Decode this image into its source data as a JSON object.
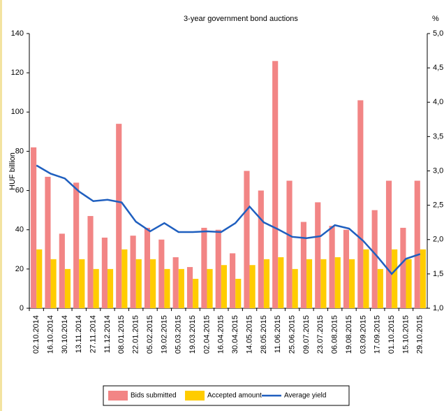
{
  "chart_data": {
    "type": "bar-line",
    "title": "3-year government bond auctions",
    "ylabel": "HUF billion",
    "y2label": "%",
    "categories": [
      "02.10.2014",
      "16.10.2014",
      "30.10.2014",
      "13.11.2014",
      "27.11.2014",
      "11.12.2014",
      "08.01.2015",
      "22.01.2015",
      "05.02.2015",
      "19.02.2015",
      "05.03.2015",
      "19.03.2015",
      "02.04.2015",
      "16.04.2015",
      "30.04.2015",
      "14.05.2015",
      "28.05.2015",
      "11.06.2015",
      "25.06.2015",
      "09.07.2015",
      "23.07.2015",
      "06.08.2015",
      "19.08.2015",
      "03.09.2015",
      "17.09.2015",
      "01.10.2015",
      "15.10.2015",
      "29.10.2015"
    ],
    "series": [
      {
        "name": "Bids submitted",
        "color": "#f28585",
        "type": "bar",
        "values": [
          82,
          67,
          38,
          64,
          47,
          36,
          94,
          37,
          41,
          35,
          26,
          21,
          41,
          40,
          28,
          70,
          60,
          126,
          65,
          44,
          54,
          42,
          40,
          106,
          50,
          65,
          41,
          65
        ]
      },
      {
        "name": "Accepted amount",
        "color": "#ffcc00",
        "type": "bar",
        "values": [
          30,
          25,
          20,
          25,
          20,
          20,
          30,
          25,
          25,
          20,
          20,
          15,
          20,
          22,
          15,
          22,
          25,
          26,
          20,
          25,
          25,
          26,
          25,
          30,
          20,
          30,
          25,
          30
        ]
      },
      {
        "name": "Average yield",
        "color": "#1f5fbf",
        "type": "line",
        "axis": "y2",
        "values": [
          3.08,
          2.96,
          2.89,
          2.7,
          2.56,
          2.58,
          2.54,
          2.26,
          2.12,
          2.24,
          2.11,
          2.11,
          2.12,
          2.11,
          2.24,
          2.48,
          2.25,
          2.15,
          2.04,
          2.02,
          2.05,
          2.21,
          2.16,
          1.98,
          1.75,
          1.5,
          1.72,
          1.79
        ]
      }
    ],
    "ylim": [
      0,
      140
    ],
    "yticks": [
      0,
      20,
      40,
      60,
      80,
      100,
      120,
      140
    ],
    "y2lim": [
      1,
      5
    ],
    "y2ticks": [
      {
        "value": 1,
        "label": "1,0"
      },
      {
        "value": 1.5,
        "label": "1,5"
      },
      {
        "value": 2,
        "label": "2,0"
      },
      {
        "value": 2.5,
        "label": "2,5"
      },
      {
        "value": 3,
        "label": "3,0"
      },
      {
        "value": 3.5,
        "label": "3,5"
      },
      {
        "value": 4,
        "label": "4,0"
      },
      {
        "value": 4.5,
        "label": "4,5"
      },
      {
        "value": 5,
        "label": "5,0"
      }
    ]
  }
}
